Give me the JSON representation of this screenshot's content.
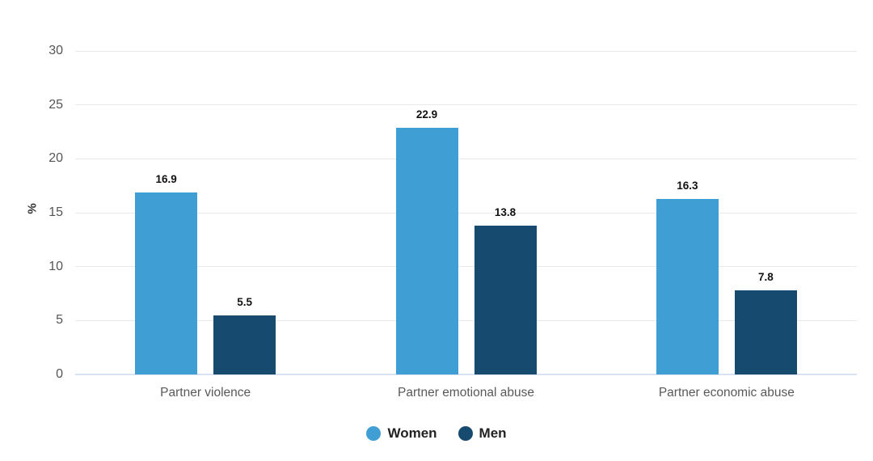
{
  "chart_data": {
    "type": "bar",
    "title": "",
    "categories": [
      "Partner violence",
      "Partner emotional abuse",
      "Partner economic abuse"
    ],
    "series": [
      {
        "name": "Women",
        "color": "#3F9ED3",
        "values": [
          16.9,
          22.9,
          16.3
        ]
      },
      {
        "name": "Men",
        "color": "#174A6F",
        "values": [
          5.5,
          13.8,
          7.8
        ]
      }
    ],
    "xlabel": "",
    "ylabel": "%",
    "ylim": [
      0,
      30
    ],
    "yticks": [
      0,
      5,
      10,
      15,
      20,
      25,
      30
    ],
    "grid": true,
    "value_labels": true,
    "legend_position": "bottom-center",
    "colors": {
      "gridline": "#e9e9e9",
      "baseline": "#d9e2f3",
      "tick_text": "#555555",
      "category_text": "#595959",
      "value_text": "#111111",
      "legend_text": "#222222",
      "background": "#ffffff"
    }
  }
}
